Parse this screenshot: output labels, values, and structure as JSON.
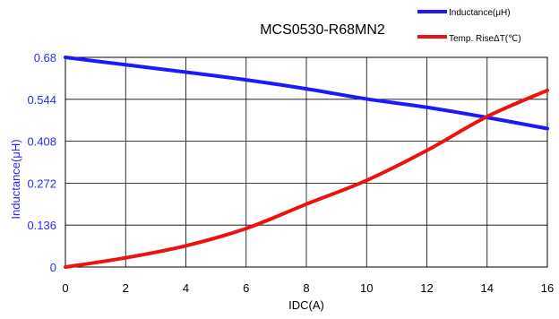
{
  "chart_data": {
    "type": "line",
    "title": "MCS0530-R68MN2",
    "xlabel": "IDC(A)",
    "ylabel": "Inductance(μH)",
    "xlim": [
      0,
      16
    ],
    "ylim": [
      0,
      0.68
    ],
    "x_ticks": [
      "0",
      "2",
      "4",
      "6",
      "8",
      "10",
      "12",
      "14",
      "16"
    ],
    "y_ticks": [
      "0",
      "0.136",
      "0.272",
      "0.408",
      "0.544",
      "0.68"
    ],
    "grid": true,
    "legend_position": "top-right",
    "colors": {
      "inductance": "#1a1aff",
      "temp_rise": "#ee1111",
      "y_axis_text": "#2a2aff"
    },
    "series": [
      {
        "name": "Inductance(μH)",
        "color": "#1a1aff",
        "points": [
          [
            0,
            0.68
          ],
          [
            2,
            0.656
          ],
          [
            4,
            0.632
          ],
          [
            6,
            0.607
          ],
          [
            8,
            0.578
          ],
          [
            10,
            0.545
          ],
          [
            12,
            0.518
          ],
          [
            14,
            0.485
          ],
          [
            16,
            0.449
          ]
        ]
      },
      {
        "name": "Temp. RiseΔT(℃)",
        "color": "#ee1111",
        "points": [
          [
            0,
            0.0
          ],
          [
            2,
            0.03
          ],
          [
            4,
            0.069
          ],
          [
            6,
            0.125
          ],
          [
            8,
            0.204
          ],
          [
            10,
            0.281
          ],
          [
            12,
            0.378
          ],
          [
            14,
            0.488
          ],
          [
            16,
            0.573
          ]
        ]
      }
    ]
  }
}
